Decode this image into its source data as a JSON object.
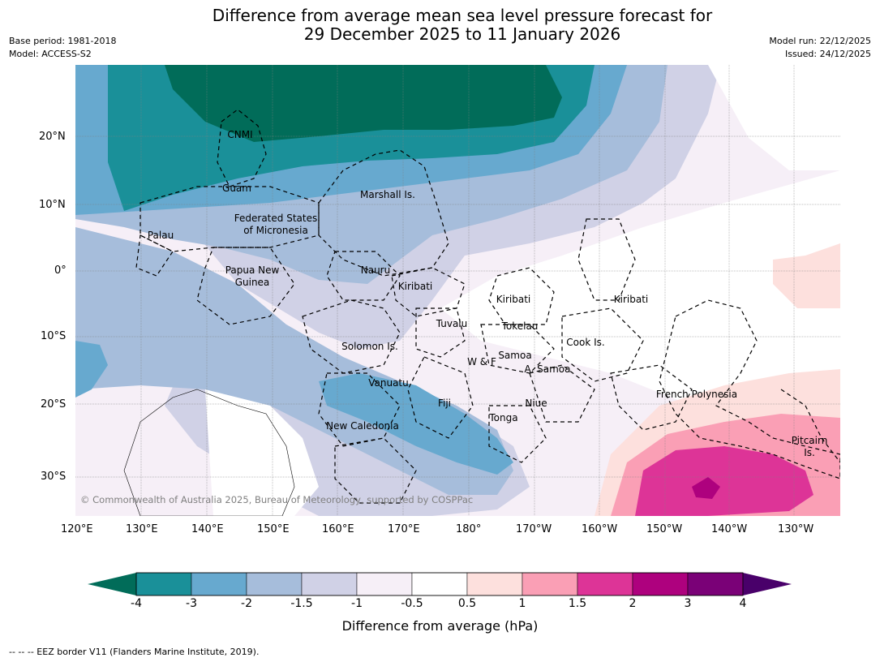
{
  "header": {
    "title_line1": "Difference from average mean sea level pressure forecast for",
    "title_line2": "29 December 2025 to 11 January 2026",
    "base_period": "Base period: 1981-2018",
    "model": "Model: ACCESS-S2",
    "model_run": "Model run: 22/12/2025",
    "issued": "Issued: 24/12/2025"
  },
  "map": {
    "lat_labels": [
      "20°N",
      "10°N",
      "0°",
      "10°S",
      "20°S",
      "30°S"
    ],
    "lon_labels": [
      "120°E",
      "130°E",
      "140°E",
      "150°E",
      "160°E",
      "170°E",
      "180°",
      "170°W",
      "160°W",
      "150°W",
      "140°W",
      "130°W"
    ],
    "regions": [
      "CNMI",
      "Guam",
      "Marshall Is.",
      "Federated States",
      "of Micronesia",
      "Palau",
      "Papua New",
      "Guinea",
      "Nauru",
      "Kiribati",
      "Kiribati",
      "Kiribati",
      "Tuvalu",
      "Tokelau",
      "Cook Is.",
      "Solomon Is.",
      "Samoa",
      "W & F",
      "A. Samoa",
      "Vanuatu",
      "Fiji",
      "Niue",
      "Tonga",
      "New Caledonia",
      "French Polynesia",
      "Pitcairn",
      "Is."
    ],
    "copyright": "© Commonwealth of Australia 2025, Bureau of Meteorology, supported by COSPPac"
  },
  "colorbar": {
    "ticks": [
      "-4",
      "-3",
      "-2",
      "-1.5",
      "-1",
      "-0.5",
      "0.5",
      "1",
      "1.5",
      "2",
      "3",
      "4"
    ],
    "colors": [
      "#1a9099",
      "#67a9cf",
      "#a6bddb",
      "#d0d1e6",
      "#f6eff7",
      "#ffffff",
      "#fde0dd",
      "#fa9fb5",
      "#dd3497",
      "#ae017e",
      "#7a0177"
    ],
    "low_extend_color": "#016c59",
    "high_extend_color": "#49006a",
    "label": "Difference from average (hPa)"
  },
  "footer": {
    "legend_text": "--  --  -- EEZ border V11 (Flanders Marine Institute, 2019)."
  }
}
